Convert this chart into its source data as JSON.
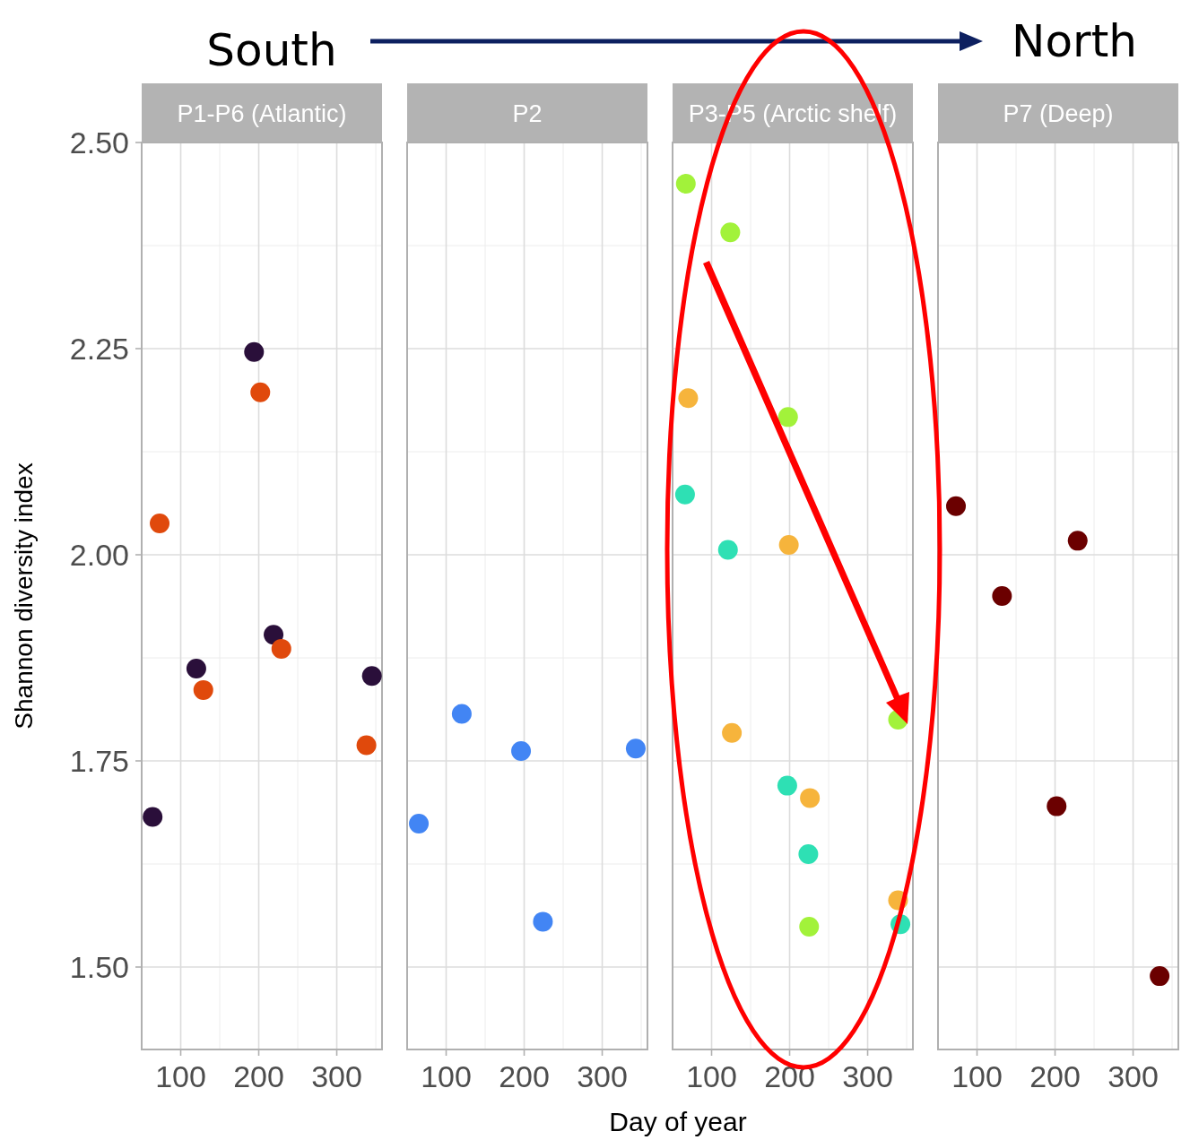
{
  "chart_data": [
    {
      "type": "scatter",
      "title": "P1-P6 (Atlantic)",
      "ylabel": "Shannon diversity index",
      "annotations": [
        "South",
        "North"
      ],
      "xlim": [
        50,
        358
      ],
      "xticks": [
        100,
        200,
        300
      ],
      "ylim": [
        1.4,
        2.5
      ],
      "yticks": [
        {
          "value": 1.5,
          "label": "1.50"
        },
        1.75,
        {
          "value": 2,
          "label": "2.00"
        },
        2.25,
        {
          "value": 2.5,
          "label": "2.50"
        }
      ],
      "grid": true,
      "marker": "circle",
      "series": [
        {
          "color": "#2a0f3a",
          "x": [
            64,
            120,
            194,
            219,
            345
          ],
          "values": [
            1.682,
            1.862,
            2.246,
            1.903,
            1.853
          ]
        },
        {
          "color": "#e0490c",
          "x": [
            73,
            129,
            202,
            229,
            338
          ],
          "values": [
            2.038,
            1.836,
            2.197,
            1.886,
            1.769
          ]
        }
      ]
    },
    {
      "type": "scatter",
      "title": "P2",
      "xlim": [
        50,
        358
      ],
      "xticks": [
        100,
        200,
        300
      ],
      "ylim": [
        1.4,
        2.5
      ],
      "yticks": [
        1.5,
        1.75,
        2,
        2.25,
        2.5
      ],
      "tick_labels": "x",
      "grid": true,
      "marker": "circle",
      "series": [
        {
          "color": "#4285f4",
          "x": [
            65,
            120,
            196,
            224,
            343
          ],
          "values": [
            1.674,
            1.807,
            1.762,
            1.555,
            1.765
          ]
        }
      ]
    },
    {
      "type": "scatter",
      "title": "P3-P5 (Arctic shelf)",
      "xlabel": "Day of year",
      "xlim": [
        50,
        358
      ],
      "xticks": [
        100,
        200,
        300
      ],
      "ylim": [
        1.4,
        2.5
      ],
      "yticks": [
        1.5,
        1.75,
        2,
        2.25,
        2.5
      ],
      "tick_labels": "x",
      "grid": true,
      "marker": "circle",
      "series": [
        {
          "color": "#a2f23a",
          "x": [
            67,
            124,
            198,
            339,
            225
          ],
          "values": [
            2.45,
            2.391,
            2.167,
            1.8,
            1.549
          ]
        },
        {
          "color": "#f6b43c",
          "x": [
            70,
            199,
            126,
            226,
            339
          ],
          "values": [
            2.19,
            2.012,
            1.784,
            1.705,
            1.581
          ]
        },
        {
          "color": "#2ee0b4",
          "x": [
            66,
            121,
            197,
            224,
            342
          ],
          "values": [
            2.073,
            2.006,
            1.72,
            1.637,
            1.552
          ]
        }
      ]
    },
    {
      "type": "scatter",
      "title": "P7 (Deep)",
      "xlim": [
        50,
        358
      ],
      "xticks": [
        100,
        200,
        300
      ],
      "ylim": [
        1.4,
        2.5
      ],
      "yticks": [
        1.5,
        1.75,
        2,
        2.25,
        2.5
      ],
      "tick_labels": "x",
      "grid": true,
      "marker": "circle",
      "series": [
        {
          "color": "#6b0000",
          "x": [
            73,
            132,
            229,
            202,
            334
          ],
          "values": [
            2.059,
            1.95,
            2.017,
            1.695,
            1.489
          ]
        }
      ]
    }
  ]
}
